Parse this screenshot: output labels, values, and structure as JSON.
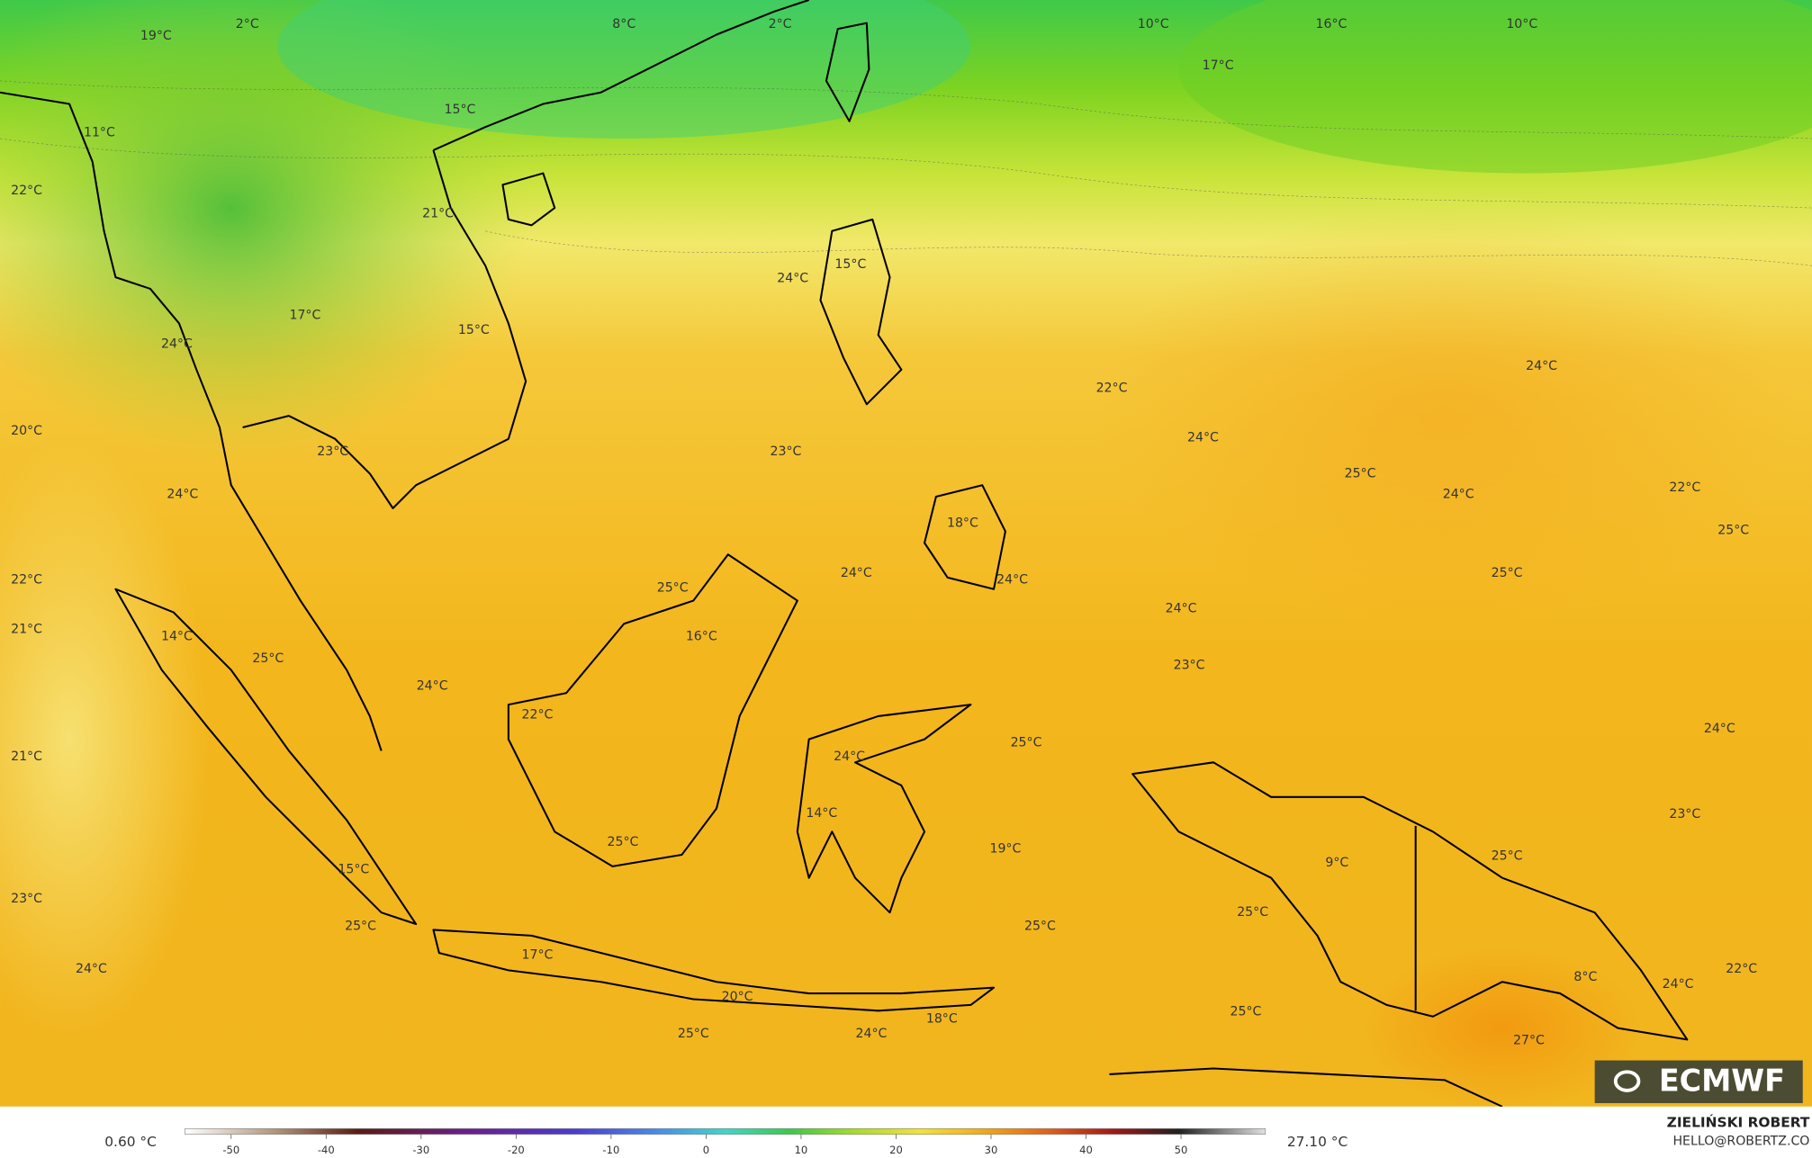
{
  "labels": [
    "19°C",
    "2°C",
    "8°C",
    "2°C",
    "10°C",
    "16°C",
    "10°C",
    "17°C",
    "11°C",
    "15°C",
    "22°C",
    "21°C",
    "24°C",
    "15°C",
    "17°C",
    "15°C",
    "24°C",
    "24°C",
    "22°C",
    "20°C",
    "24°C",
    "23°C",
    "23°C",
    "25°C",
    "24°C",
    "24°C",
    "22°C",
    "18°C",
    "25°C",
    "24°C",
    "24°C",
    "25°C",
    "22°C",
    "25°C",
    "24°C",
    "21°C",
    "14°C",
    "16°C",
    "23°C",
    "25°C",
    "24°C",
    "22°C",
    "24°C",
    "25°C",
    "21°C",
    "24°C",
    "14°C",
    "23°C",
    "25°C",
    "19°C",
    "9°C",
    "25°C",
    "15°C",
    "23°C",
    "25°C",
    "25°C",
    "25°C",
    "17°C",
    "24°C",
    "22°C",
    "8°C",
    "24°C",
    "20°C",
    "18°C",
    "25°C",
    "25°C",
    "24°C",
    "27°C"
  ],
  "logo": "ECMWF",
  "colorbar": {
    "min_label": "0.60 °C",
    "max_label": "27.10 °C",
    "ticks": [
      -50,
      -40,
      -30,
      -20,
      -10,
      0,
      10,
      20,
      30,
      40,
      50
    ]
  },
  "author": {
    "name": "ZIELIŃSKI ROBERT",
    "contact": "HELLO@ROBERTZ.CO"
  }
}
